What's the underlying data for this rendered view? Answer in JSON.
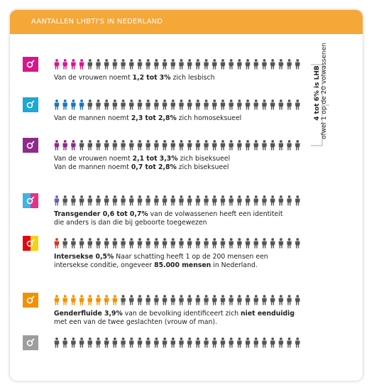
{
  "header": {
    "title": "AANTALLEN LHBTI'S IN NEDERLAND"
  },
  "rows": [
    {
      "lines": [
        [
          {
            "text": "Van de vrouwen noemt "
          },
          {
            "text": "1,2 tot 3%",
            "bold": true
          },
          {
            "text": " zich lesbisch"
          }
        ]
      ]
    },
    {
      "lines": [
        [
          {
            "text": "Van de mannen noemt "
          },
          {
            "text": "2,3 tot 2,8%",
            "bold": true
          },
          {
            "text": " zich homoseksueel"
          }
        ]
      ]
    },
    {
      "lines": [
        [
          {
            "text": "Van de vrouwen noemt "
          },
          {
            "text": "2,1 tot 3,3%",
            "bold": true
          },
          {
            "text": " zich biseksueel"
          }
        ],
        [
          {
            "text": "Van de mannen noemt "
          },
          {
            "text": "0,7 tot 2,8%",
            "bold": true
          },
          {
            "text": " zich biseksueel"
          }
        ]
      ]
    },
    {
      "lines": [
        [
          {
            "text": "Transgender 0,6 tot 0,7%",
            "bold": true
          },
          {
            "text": " van de volwassenen heeft een identiteit"
          }
        ],
        [
          {
            "text": "die anders is dan die bij geboorte toegewezen"
          }
        ]
      ]
    },
    {
      "lines": [
        [
          {
            "text": "Intersekse 0,5%",
            "bold": true
          },
          {
            "text": " Naar schatting heeft 1 op de 200 mensen een"
          }
        ],
        [
          {
            "text": "intersekse conditie, ongeveer "
          },
          {
            "text": "85.000 mensen",
            "bold": true
          },
          {
            "text": " in Nederland."
          }
        ]
      ]
    },
    {
      "lines": [
        [
          {
            "text": "Genderfluide 3,9%",
            "bold": true
          },
          {
            "text": " van de bevolking identificeert zich "
          },
          {
            "text": "niet eenduidig",
            "bold": true
          }
        ],
        [
          {
            "text": "met een van de twee geslachten (vrouw of man)."
          }
        ]
      ]
    },
    {
      "lines": []
    }
  ],
  "side_note": {
    "title": "4 tot 6% is LHB",
    "subtitle": "ofwel 1 op de 20 volwassenen"
  }
}
